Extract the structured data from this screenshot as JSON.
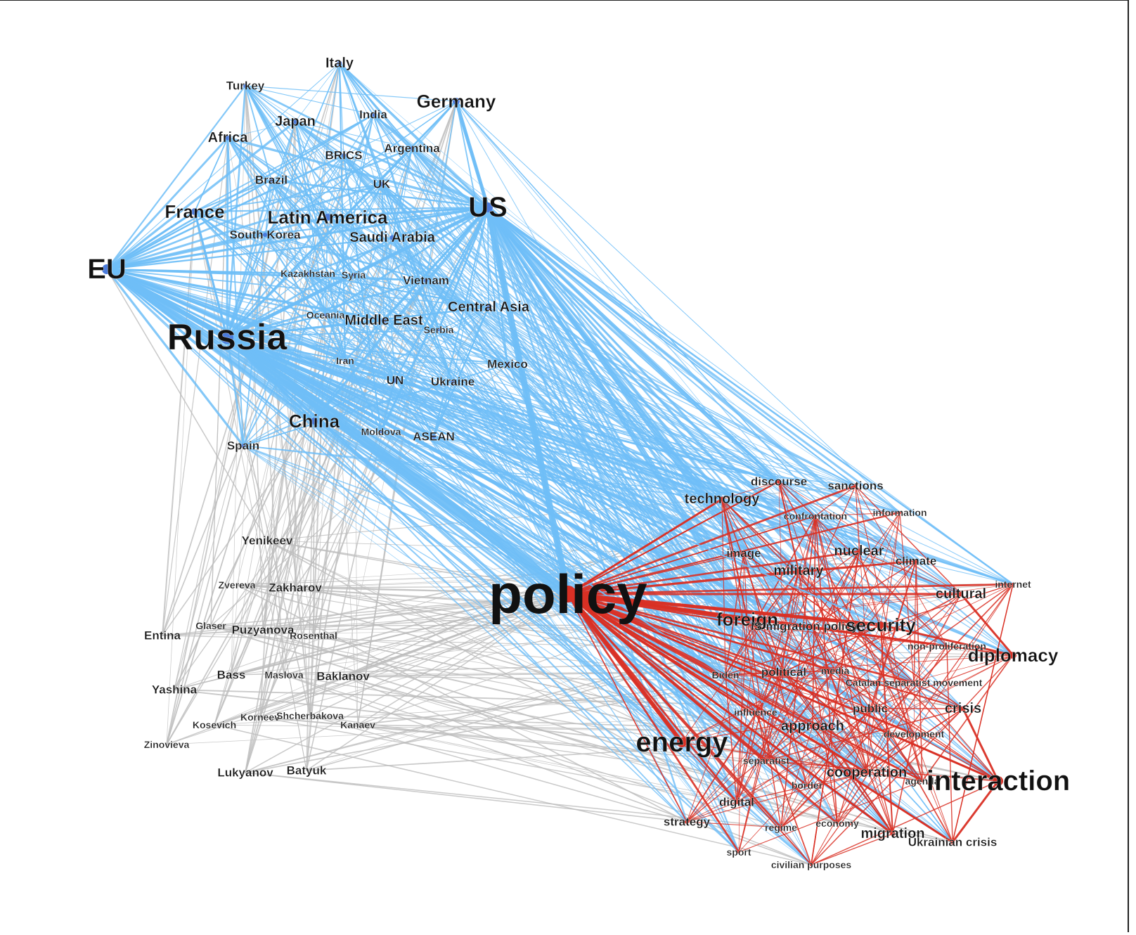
{
  "colors": {
    "country": "#6fbef7",
    "person": "#bdbdbd",
    "topic": "#d93025",
    "node_country": "#4a7bdc",
    "node_topic": "#d93025"
  },
  "hubs": [
    "policy",
    "Russia",
    "US",
    "EU"
  ],
  "nodes": [
    {
      "id": "policy",
      "label": "policy",
      "group": "topic",
      "size": "xxl"
    },
    {
      "id": "Russia",
      "label": "Russia",
      "group": "country",
      "size": "xl"
    },
    {
      "id": "US",
      "label": "US",
      "group": "country",
      "size": "l"
    },
    {
      "id": "EU",
      "label": "EU",
      "group": "country",
      "size": "l"
    },
    {
      "id": "France",
      "label": "France",
      "group": "country",
      "size": "m"
    },
    {
      "id": "Germany",
      "label": "Germany",
      "group": "country",
      "size": "m"
    },
    {
      "id": "Italy",
      "label": "Italy",
      "group": "country",
      "size": "s"
    },
    {
      "id": "Japan",
      "label": "Japan",
      "group": "country",
      "size": "s"
    },
    {
      "id": "Africa",
      "label": "Africa",
      "group": "country",
      "size": "s"
    },
    {
      "id": "Turkey",
      "label": "Turkey",
      "group": "country",
      "size": "xs"
    },
    {
      "id": "India",
      "label": "India",
      "group": "country",
      "size": "xs"
    },
    {
      "id": "BRICS",
      "label": "BRICS",
      "group": "country",
      "size": "xs"
    },
    {
      "id": "Argentina",
      "label": "Argentina",
      "group": "country",
      "size": "xs"
    },
    {
      "id": "Brazil",
      "label": "Brazil",
      "group": "country",
      "size": "xs"
    },
    {
      "id": "UK",
      "label": "UK",
      "group": "country",
      "size": "xs"
    },
    {
      "id": "Latin America",
      "label": "Latin America",
      "group": "country",
      "size": "m"
    },
    {
      "id": "South Korea",
      "label": "South Korea",
      "group": "country",
      "size": "xs"
    },
    {
      "id": "Saudi Arabia",
      "label": "Saudi Arabia",
      "group": "country",
      "size": "s"
    },
    {
      "id": "Kazakhstan",
      "label": "Kazakhstan",
      "group": "country",
      "size": "xxs"
    },
    {
      "id": "Syria",
      "label": "Syria",
      "group": "country",
      "size": "xxs"
    },
    {
      "id": "Vietnam",
      "label": "Vietnam",
      "group": "country",
      "size": "xs"
    },
    {
      "id": "Central Asia",
      "label": "Central Asia",
      "group": "country",
      "size": "s"
    },
    {
      "id": "Oceania",
      "label": "Oceania",
      "group": "country",
      "size": "xxs"
    },
    {
      "id": "Middle East",
      "label": "Middle East",
      "group": "country",
      "size": "s"
    },
    {
      "id": "Serbia",
      "label": "Serbia",
      "group": "country",
      "size": "xxs"
    },
    {
      "id": "Iran",
      "label": "Iran",
      "group": "country",
      "size": "xxs"
    },
    {
      "id": "Mexico",
      "label": "Mexico",
      "group": "country",
      "size": "xs"
    },
    {
      "id": "UN",
      "label": "UN",
      "group": "country",
      "size": "xs"
    },
    {
      "id": "Ukraine",
      "label": "Ukraine",
      "group": "country",
      "size": "xs"
    },
    {
      "id": "China",
      "label": "China",
      "group": "country",
      "size": "m"
    },
    {
      "id": "Moldova",
      "label": "Moldova",
      "group": "country",
      "size": "xxs"
    },
    {
      "id": "ASEAN",
      "label": "ASEAN",
      "group": "country",
      "size": "xs"
    },
    {
      "id": "Spain",
      "label": "Spain",
      "group": "country",
      "size": "xs"
    },
    {
      "id": "Yenikeev",
      "label": "Yenikeev",
      "group": "person",
      "size": "xs"
    },
    {
      "id": "Zvereva",
      "label": "Zvereva",
      "group": "person",
      "size": "xxs"
    },
    {
      "id": "Zakharov",
      "label": "Zakharov",
      "group": "person",
      "size": "xs"
    },
    {
      "id": "Entina",
      "label": "Entina",
      "group": "person",
      "size": "xs"
    },
    {
      "id": "Glaser",
      "label": "Glaser",
      "group": "person",
      "size": "xxs"
    },
    {
      "id": "Puzyanova",
      "label": "Puzyanova",
      "group": "person",
      "size": "xs"
    },
    {
      "id": "Rosenthal",
      "label": "Rosenthal",
      "group": "person",
      "size": "xxs"
    },
    {
      "id": "Bass",
      "label": "Bass",
      "group": "person",
      "size": "xs"
    },
    {
      "id": "Maslova",
      "label": "Maslova",
      "group": "person",
      "size": "xxs"
    },
    {
      "id": "Baklanov",
      "label": "Baklanov",
      "group": "person",
      "size": "xs"
    },
    {
      "id": "Yashina",
      "label": "Yashina",
      "group": "person",
      "size": "xs"
    },
    {
      "id": "Korneev",
      "label": "Korneev",
      "group": "person",
      "size": "xxs"
    },
    {
      "id": "Shcherbakova",
      "label": "Shcherbakova",
      "group": "person",
      "size": "xxs"
    },
    {
      "id": "Kosevich",
      "label": "Kosevich",
      "group": "person",
      "size": "xxs"
    },
    {
      "id": "Kanaev",
      "label": "Kanaev",
      "group": "person",
      "size": "xxs"
    },
    {
      "id": "Zinovieva",
      "label": "Zinovieva",
      "group": "person",
      "size": "xxs"
    },
    {
      "id": "Lukyanov",
      "label": "Lukyanov",
      "group": "person",
      "size": "xs"
    },
    {
      "id": "Batyuk",
      "label": "Batyuk",
      "group": "person",
      "size": "xs"
    },
    {
      "id": "discourse",
      "label": "discourse",
      "group": "topic",
      "size": "xs"
    },
    {
      "id": "sanctions",
      "label": "sanctions",
      "group": "topic",
      "size": "xs"
    },
    {
      "id": "technology",
      "label": "technology",
      "group": "topic",
      "size": "s"
    },
    {
      "id": "confrontation",
      "label": "confrontation",
      "group": "topic",
      "size": "xxs"
    },
    {
      "id": "information",
      "label": "information",
      "group": "topic",
      "size": "xxs"
    },
    {
      "id": "image",
      "label": "image",
      "group": "topic",
      "size": "xs"
    },
    {
      "id": "nuclear",
      "label": "nuclear",
      "group": "topic",
      "size": "s"
    },
    {
      "id": "climate",
      "label": "climate",
      "group": "topic",
      "size": "xs"
    },
    {
      "id": "military",
      "label": "military",
      "group": "topic",
      "size": "s"
    },
    {
      "id": "internet",
      "label": "internet",
      "group": "topic",
      "size": "xxs"
    },
    {
      "id": "cultural",
      "label": "cultural",
      "group": "topic",
      "size": "s"
    },
    {
      "id": "foreign",
      "label": "foreign",
      "group": "topic",
      "size": "m"
    },
    {
      "id": "IS",
      "label": "IS",
      "group": "topic",
      "size": "xs"
    },
    {
      "id": "migration_policy",
      "label": "migration policy",
      "group": "topic",
      "size": "xs"
    },
    {
      "id": "security",
      "label": "security",
      "group": "topic",
      "size": "m"
    },
    {
      "id": "non-proliferation",
      "label": "non-proliferation",
      "group": "topic",
      "size": "xxs"
    },
    {
      "id": "diplomacy",
      "label": "diplomacy",
      "group": "topic",
      "size": "m"
    },
    {
      "id": "Biden",
      "label": "Biden",
      "group": "topic",
      "size": "xxs"
    },
    {
      "id": "political",
      "label": "political",
      "group": "topic",
      "size": "xs"
    },
    {
      "id": "media",
      "label": "media",
      "group": "topic",
      "size": "xxs"
    },
    {
      "id": "Catalan separatist movement",
      "label": "Catalan separatist movement",
      "group": "topic",
      "size": "xxs"
    },
    {
      "id": "influence",
      "label": "influence",
      "group": "topic",
      "size": "xxs"
    },
    {
      "id": "public",
      "label": "public",
      "group": "topic",
      "size": "xs"
    },
    {
      "id": "crisis",
      "label": "crisis",
      "group": "topic",
      "size": "s"
    },
    {
      "id": "approach",
      "label": "approach",
      "group": "topic",
      "size": "s"
    },
    {
      "id": "development",
      "label": "development",
      "group": "topic",
      "size": "xxs"
    },
    {
      "id": "energy",
      "label": "energy",
      "group": "topic",
      "size": "l"
    },
    {
      "id": "separatist",
      "label": "separatist",
      "group": "topic",
      "size": "xxs"
    },
    {
      "id": "cooperation",
      "label": "cooperation",
      "group": "topic",
      "size": "s"
    },
    {
      "id": "agenda",
      "label": "agenda",
      "group": "topic",
      "size": "xxs"
    },
    {
      "id": "interaction",
      "label": "interaction",
      "group": "topic",
      "size": "l"
    },
    {
      "id": "border",
      "label": "border",
      "group": "topic",
      "size": "xxs"
    },
    {
      "id": "digital",
      "label": "digital",
      "group": "topic",
      "size": "xs"
    },
    {
      "id": "strategy",
      "label": "strategy",
      "group": "topic",
      "size": "xs"
    },
    {
      "id": "regime",
      "label": "regime",
      "group": "topic",
      "size": "xxs"
    },
    {
      "id": "economy",
      "label": "economy",
      "group": "topic",
      "size": "xxs"
    },
    {
      "id": "migration",
      "label": "migration",
      "group": "topic",
      "size": "s"
    },
    {
      "id": "Ukrainian crisis",
      "label": "Ukrainian crisis",
      "group": "topic",
      "size": "xs"
    },
    {
      "id": "sport",
      "label": "sport",
      "group": "topic",
      "size": "xxs"
    },
    {
      "id": "civilian purposes",
      "label": "civilian purposes",
      "group": "topic",
      "size": "xxs"
    }
  ],
  "strong_edges": [
    [
      "Russia",
      "policy",
      14
    ],
    [
      "US",
      "policy",
      9
    ],
    [
      "EU",
      "Russia",
      7
    ],
    [
      "Russia",
      "US",
      5
    ],
    [
      "Germany",
      "US",
      5
    ],
    [
      "France",
      "EU",
      3
    ],
    [
      "France",
      "Russia",
      3
    ],
    [
      "Russia",
      "China",
      3
    ],
    [
      "Latin America",
      "US",
      3
    ],
    [
      "Russia",
      "security",
      2
    ],
    [
      "Russia",
      "cooperation",
      2
    ],
    [
      "policy",
      "foreign",
      7
    ],
    [
      "policy",
      "energy",
      6
    ],
    [
      "policy",
      "security",
      5
    ],
    [
      "policy",
      "migration",
      3
    ],
    [
      "policy",
      "Ukrainian crisis",
      3
    ],
    [
      "policy",
      "technology",
      2
    ],
    [
      "policy",
      "cooperation",
      3
    ],
    [
      "policy",
      "discourse",
      2
    ],
    [
      "policy",
      "interaction",
      3
    ],
    [
      "security",
      "diplomacy",
      3
    ],
    [
      "crisis",
      "interaction",
      3
    ],
    [
      "interaction",
      "Ukrainian crisis",
      3
    ],
    [
      "military",
      "discourse",
      2
    ],
    [
      "cultural",
      "diplomacy",
      3
    ],
    [
      "security",
      "migration",
      2
    ],
    [
      "foreign",
      "technology",
      2
    ],
    [
      "approach",
      "migration",
      2
    ]
  ]
}
